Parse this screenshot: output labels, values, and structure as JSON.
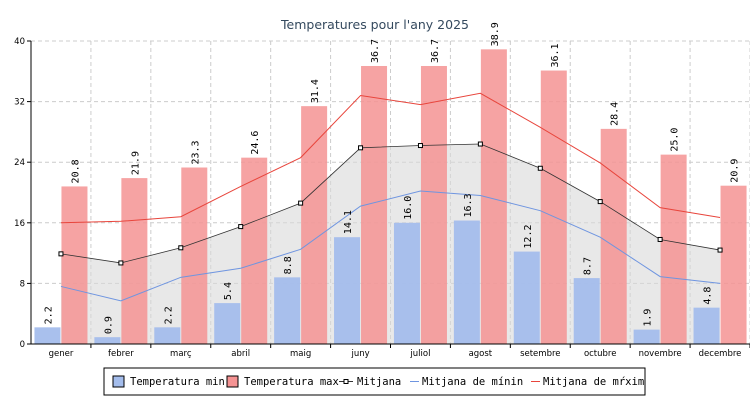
{
  "chart_data": {
    "type": "bar",
    "title": "Temperatures pour l'any 2025",
    "categories": [
      "gener",
      "febrer",
      "març",
      "abril",
      "maig",
      "juny",
      "juliol",
      "agost",
      "setembre",
      "octubre",
      "novembre",
      "decembre"
    ],
    "ylim": [
      0,
      40
    ],
    "yticks": [
      0,
      8,
      16,
      24,
      32,
      40
    ],
    "grid": true,
    "series": [
      {
        "name": "Temperatura min",
        "kind": "bar",
        "color": "#a4bdec",
        "values": [
          2.2,
          0.9,
          2.2,
          5.4,
          8.8,
          14.1,
          16.0,
          16.3,
          12.2,
          8.7,
          1.9,
          4.8
        ],
        "labels": [
          "2.2",
          "0.9",
          "2.2",
          "5.4",
          "8.8",
          "14.1",
          "16.0",
          "16.3",
          "12.2",
          "8.7",
          "1.9",
          "4.8"
        ]
      },
      {
        "name": "Temperatura max",
        "kind": "bar",
        "color": "#f59393",
        "values": [
          20.8,
          21.9,
          23.3,
          24.6,
          31.4,
          36.7,
          36.7,
          38.9,
          36.1,
          28.4,
          25.0,
          20.9
        ],
        "labels": [
          "20.8",
          "21.9",
          "23.3",
          "24.6",
          "31.4",
          "36.7",
          "36.7",
          "38.9",
          "36.1",
          "28.4",
          "25.0",
          "20.9"
        ]
      },
      {
        "name": "Mitjana",
        "kind": "line-area",
        "color": "#333333",
        "values": [
          11.9,
          10.7,
          12.7,
          15.5,
          18.6,
          25.9,
          26.2,
          26.4,
          23.2,
          18.8,
          13.8,
          12.4
        ]
      },
      {
        "name": "Mitjana de mínin",
        "kind": "line",
        "color": "#6f95e0",
        "values": [
          7.6,
          5.7,
          8.8,
          10.0,
          12.5,
          18.2,
          20.2,
          19.6,
          17.6,
          14.1,
          8.9,
          8.0
        ]
      },
      {
        "name": "Mitjana de màxim",
        "kind": "line",
        "color": "#e8453c",
        "values": [
          16.0,
          16.2,
          16.8,
          20.8,
          24.6,
          32.8,
          31.6,
          33.1,
          28.6,
          23.9,
          18.0,
          16.7
        ]
      }
    ],
    "legend_labels": [
      "Temperatura min",
      "Temperatura max",
      "Mitjana",
      "Mitjana de mínin",
      "Mitjana de mŕxim"
    ],
    "legend_position": "bottom-center"
  }
}
